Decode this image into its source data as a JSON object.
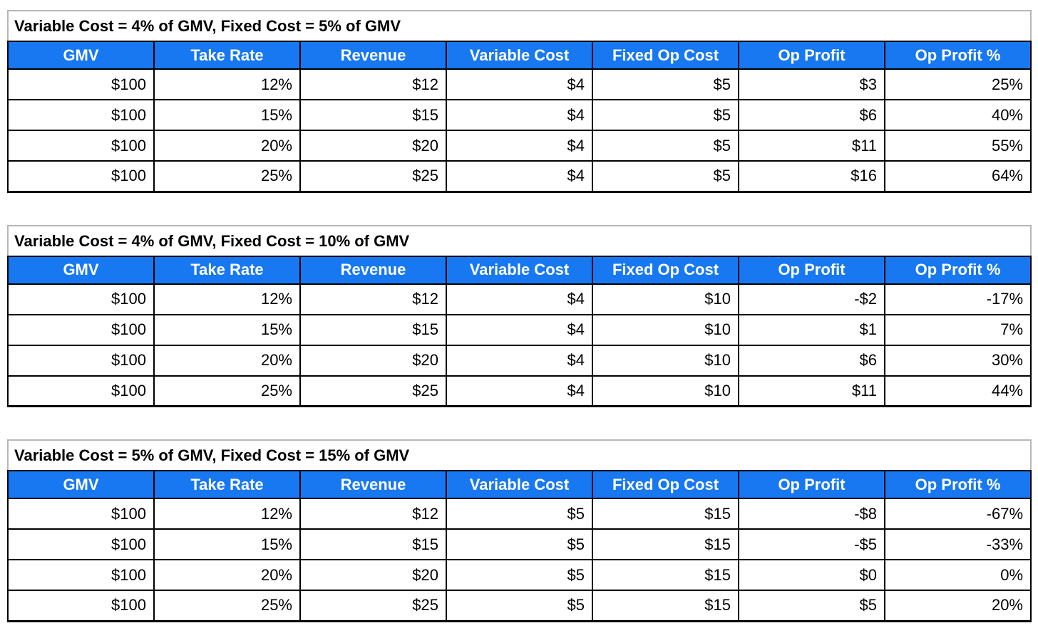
{
  "colors": {
    "header_bg": "#1778F2",
    "header_text": "#ffffff",
    "grid_border": "#000000",
    "title_border": "#b7b7b7",
    "cell_text": "#000000"
  },
  "columns": [
    "GMV",
    "Take Rate",
    "Revenue",
    "Variable Cost",
    "Fixed Op Cost",
    "Op Profit",
    "Op Profit %"
  ],
  "tables": [
    {
      "title": "Variable Cost = 4% of GMV, Fixed Cost = 5% of GMV",
      "rows": [
        [
          "$100",
          "12%",
          "$12",
          "$4",
          "$5",
          "$3",
          "25%"
        ],
        [
          "$100",
          "15%",
          "$15",
          "$4",
          "$5",
          "$6",
          "40%"
        ],
        [
          "$100",
          "20%",
          "$20",
          "$4",
          "$5",
          "$11",
          "55%"
        ],
        [
          "$100",
          "25%",
          "$25",
          "$4",
          "$5",
          "$16",
          "64%"
        ]
      ]
    },
    {
      "title": "Variable Cost = 4% of GMV, Fixed Cost = 10% of GMV",
      "rows": [
        [
          "$100",
          "12%",
          "$12",
          "$4",
          "$10",
          "-$2",
          "-17%"
        ],
        [
          "$100",
          "15%",
          "$15",
          "$4",
          "$10",
          "$1",
          "7%"
        ],
        [
          "$100",
          "20%",
          "$20",
          "$4",
          "$10",
          "$6",
          "30%"
        ],
        [
          "$100",
          "25%",
          "$25",
          "$4",
          "$10",
          "$11",
          "44%"
        ]
      ]
    },
    {
      "title": "Variable Cost = 5% of GMV, Fixed Cost = 15% of GMV",
      "rows": [
        [
          "$100",
          "12%",
          "$12",
          "$5",
          "$15",
          "-$8",
          "-67%"
        ],
        [
          "$100",
          "15%",
          "$15",
          "$5",
          "$15",
          "-$5",
          "-33%"
        ],
        [
          "$100",
          "20%",
          "$20",
          "$5",
          "$15",
          "$0",
          "0%"
        ],
        [
          "$100",
          "25%",
          "$25",
          "$5",
          "$15",
          "$5",
          "20%"
        ]
      ]
    }
  ],
  "chart_data": [
    {
      "type": "table",
      "title": "Variable Cost = 4% of GMV, Fixed Cost = 5% of GMV",
      "columns": [
        "GMV",
        "Take Rate",
        "Revenue",
        "Variable Cost",
        "Fixed Op Cost",
        "Op Profit",
        "Op Profit %"
      ],
      "rows": [
        [
          100,
          0.12,
          12,
          4,
          5,
          3,
          0.25
        ],
        [
          100,
          0.15,
          15,
          4,
          5,
          6,
          0.4
        ],
        [
          100,
          0.2,
          20,
          4,
          5,
          11,
          0.55
        ],
        [
          100,
          0.25,
          25,
          4,
          5,
          16,
          0.64
        ]
      ]
    },
    {
      "type": "table",
      "title": "Variable Cost = 4% of GMV, Fixed Cost = 10% of GMV",
      "columns": [
        "GMV",
        "Take Rate",
        "Revenue",
        "Variable Cost",
        "Fixed Op Cost",
        "Op Profit",
        "Op Profit %"
      ],
      "rows": [
        [
          100,
          0.12,
          12,
          4,
          10,
          -2,
          -0.17
        ],
        [
          100,
          0.15,
          15,
          4,
          10,
          1,
          0.07
        ],
        [
          100,
          0.2,
          20,
          4,
          10,
          6,
          0.3
        ],
        [
          100,
          0.25,
          25,
          4,
          10,
          11,
          0.44
        ]
      ]
    },
    {
      "type": "table",
      "title": "Variable Cost = 5% of GMV, Fixed Cost = 15% of GMV",
      "columns": [
        "GMV",
        "Take Rate",
        "Revenue",
        "Variable Cost",
        "Fixed Op Cost",
        "Op Profit",
        "Op Profit %"
      ],
      "rows": [
        [
          100,
          0.12,
          12,
          5,
          15,
          -8,
          -0.67
        ],
        [
          100,
          0.15,
          15,
          5,
          15,
          -5,
          -0.33
        ],
        [
          100,
          0.2,
          20,
          5,
          15,
          0,
          0.0
        ],
        [
          100,
          0.25,
          25,
          5,
          15,
          5,
          0.2
        ]
      ]
    }
  ]
}
